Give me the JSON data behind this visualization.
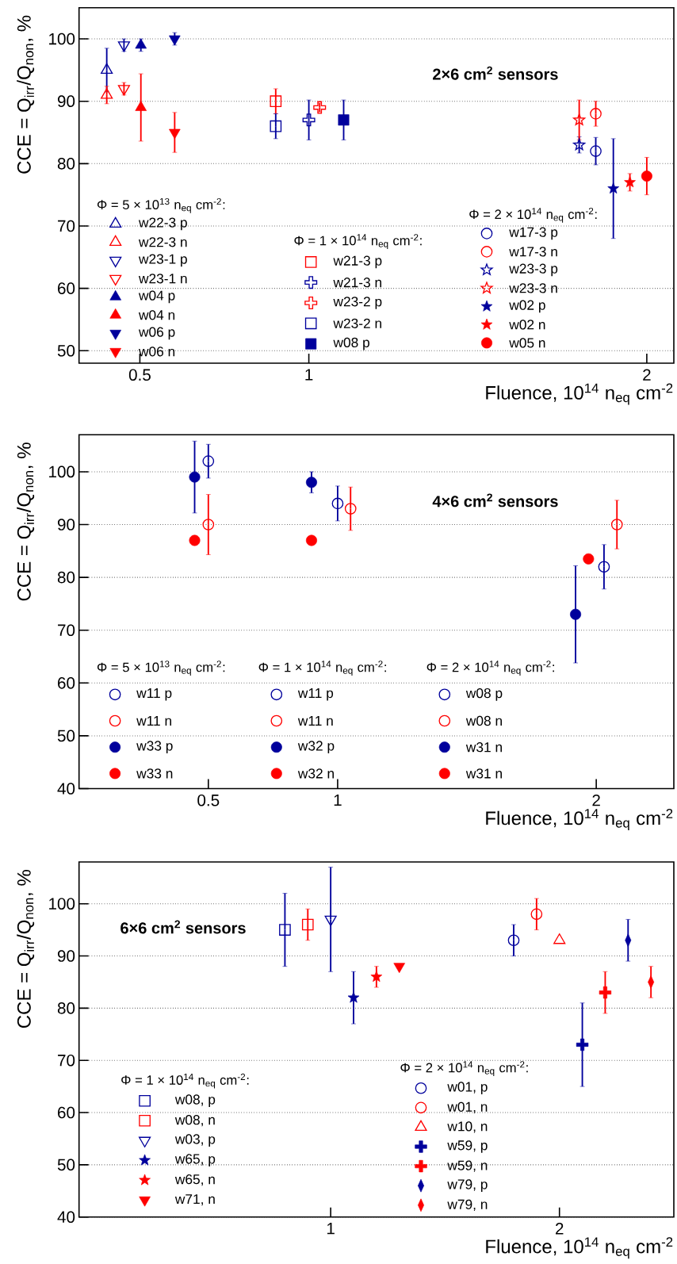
{
  "chart_data": [
    {
      "type": "scatter",
      "title": "2×6 cm$^{2}$ sensors",
      "xlabel": "Fluence, 10$^{14}$ n$_{eq}$ cm$^{-2}$",
      "ylabel": "CCE = Q$_{irr}$/Q$_{non}$, %",
      "xlim": [
        0.32,
        2.08
      ],
      "xticks": [
        0.5,
        1,
        2
      ],
      "ylim": [
        48,
        105
      ],
      "yticks": [
        50,
        60,
        70,
        80,
        90,
        100
      ],
      "grid": "y",
      "legend": "bottom",
      "annotations": [
        "Φ = 5 × 10$^{13}$ n$_{eq}$ cm$^{-2}$:",
        "Φ = 1 × 10$^{14}$ n$_{eq}$ cm$^{-2}$:",
        "Φ = 2 × 10$^{14}$ n$_{eq}$ cm$^{-2}$:"
      ],
      "series": [
        {
          "name": "w22-3 p",
          "color": "#00009c",
          "marker": "triangle-open",
          "x": [
            0.402
          ],
          "values": [
            95
          ],
          "errors": [
            3.5
          ]
        },
        {
          "name": "w22-3 n",
          "color": "#ff0000",
          "marker": "triangle-open",
          "x": [
            0.402
          ],
          "values": [
            91
          ],
          "errors": [
            1.4
          ]
        },
        {
          "name": "w23-1 p",
          "color": "#00009c",
          "marker": "triangle-down-open",
          "x": [
            0.453
          ],
          "values": [
            99
          ],
          "errors": [
            1
          ]
        },
        {
          "name": "w23-1 n",
          "color": "#ff0000",
          "marker": "triangle-down-open",
          "x": [
            0.453
          ],
          "values": [
            92
          ],
          "errors": [
            1
          ]
        },
        {
          "name": "w04 p",
          "color": "#00009c",
          "marker": "triangle",
          "x": [
            0.503
          ],
          "values": [
            99
          ],
          "errors": [
            1
          ]
        },
        {
          "name": "w04 n",
          "color": "#ff0000",
          "marker": "triangle",
          "x": [
            0.503
          ],
          "values": [
            89
          ],
          "errors": [
            5.4
          ]
        },
        {
          "name": "w06 p",
          "color": "#00009c",
          "marker": "triangle-down",
          "x": [
            0.603
          ],
          "values": [
            100
          ],
          "errors": [
            1
          ]
        },
        {
          "name": "w06 n",
          "color": "#ff0000",
          "marker": "triangle-down",
          "x": [
            0.603
          ],
          "values": [
            85
          ],
          "errors": [
            3.2
          ]
        },
        {
          "name": "w21-3 p",
          "color": "#ff0000",
          "marker": "square-open",
          "x": [
            0.902
          ],
          "values": [
            90
          ],
          "errors": [
            2
          ]
        },
        {
          "name": "w21-3 n",
          "color": "#00009c",
          "marker": "cross-open",
          "x": [
            1.0
          ],
          "values": [
            87
          ],
          "errors": [
            3.2
          ]
        },
        {
          "name": "w23-2 p",
          "color": "#ff0000",
          "marker": "cross-open",
          "x": [
            1.032
          ],
          "values": [
            89
          ],
          "errors": [
            0.7
          ]
        },
        {
          "name": "w23-2 n",
          "color": "#00009c",
          "marker": "square-open",
          "x": [
            0.902
          ],
          "values": [
            86
          ],
          "errors": [
            2
          ]
        },
        {
          "name": "w08 p",
          "color": "#00009c",
          "marker": "square",
          "x": [
            1.103
          ],
          "values": [
            87
          ],
          "errors": [
            3.2
          ]
        },
        {
          "name": "w17-3 p",
          "color": "#00009c",
          "marker": "circle-open",
          "x": [
            1.849
          ],
          "values": [
            82
          ],
          "errors": [
            2.2
          ]
        },
        {
          "name": "w17-3 n",
          "color": "#ff0000",
          "marker": "circle-open",
          "x": [
            1.849
          ],
          "values": [
            88
          ],
          "errors": [
            2
          ]
        },
        {
          "name": "w23-3 p",
          "color": "#00009c",
          "marker": "star-open",
          "x": [
            1.8
          ],
          "values": [
            83
          ],
          "errors": [
            1.3
          ]
        },
        {
          "name": "w23-3 n",
          "color": "#ff0000",
          "marker": "star-open",
          "x": [
            1.8
          ],
          "values": [
            87
          ],
          "errors": [
            3.2
          ]
        },
        {
          "name": "w02 p",
          "color": "#00009c",
          "marker": "star",
          "x": [
            1.901
          ],
          "values": [
            76
          ],
          "errors": [
            8
          ]
        },
        {
          "name": "w02 n",
          "color": "#ff0000",
          "marker": "star",
          "x": [
            1.95
          ],
          "values": [
            77
          ],
          "errors": [
            1.4
          ]
        },
        {
          "name": "w05 n",
          "color": "#ff0000",
          "marker": "circle",
          "x": [
            2.0
          ],
          "values": [
            78
          ],
          "errors": [
            3
          ]
        }
      ]
    },
    {
      "type": "scatter",
      "title": "4×6 cm$^{2}$ sensors",
      "xlabel": "Fluence, 10$^{14}$ n$_{eq}$ cm$^{-2}$",
      "ylabel": "CCE = Q$_{irr}$/Q$_{non}$, %",
      "xlim": [
        0,
        2.3
      ],
      "xticks": [
        0.5,
        1,
        2
      ],
      "ylim": [
        40,
        107
      ],
      "yticks": [
        40,
        50,
        60,
        70,
        80,
        90,
        100
      ],
      "grid": "y",
      "legend": "bottom",
      "annotations": [
        "Φ = 5 × 10$^{13}$ n$_{eq}$ cm$^{-2}$:",
        "Φ = 1 × 10$^{14}$ n$_{eq}$ cm$^{-2}$:",
        "Φ = 2 × 10$^{14}$ n$_{eq}$ cm$^{-2}$:"
      ],
      "series": [
        {
          "name": "w11 p",
          "color": "#00009c",
          "marker": "circle-open",
          "x": [
            0.5
          ],
          "values": [
            102
          ],
          "errors": [
            3.2
          ]
        },
        {
          "name": "w11 n",
          "color": "#ff0000",
          "marker": "circle-open",
          "x": [
            0.5
          ],
          "values": [
            90
          ],
          "errors": [
            5.7
          ]
        },
        {
          "name": "w33 p",
          "color": "#00009c",
          "marker": "circle",
          "x": [
            0.447
          ],
          "values": [
            99
          ],
          "errors": [
            6.8
          ]
        },
        {
          "name": "w33 n",
          "color": "#ff0000",
          "marker": "circle",
          "x": [
            0.447
          ],
          "values": [
            87
          ],
          "errors": [
            null
          ]
        },
        {
          "name": "w11 p",
          "color": "#00009c",
          "marker": "circle-open",
          "x": [
            1.0
          ],
          "values": [
            94
          ],
          "errors": [
            3.3
          ]
        },
        {
          "name": "w11 n",
          "color": "#ff0000",
          "marker": "circle-open",
          "x": [
            1.05
          ],
          "values": [
            93
          ],
          "errors": [
            4.1
          ]
        },
        {
          "name": "w32 p",
          "color": "#00009c",
          "marker": "circle",
          "x": [
            0.899
          ],
          "values": [
            98
          ],
          "errors": [
            2
          ]
        },
        {
          "name": "w32 n",
          "color": "#ff0000",
          "marker": "circle",
          "x": [
            0.899
          ],
          "values": [
            87
          ],
          "errors": [
            null
          ]
        },
        {
          "name": "w08 p",
          "color": "#00009c",
          "marker": "circle-open",
          "x": [
            2.03
          ],
          "values": [
            82
          ],
          "errors": [
            4.2
          ]
        },
        {
          "name": "w08 n",
          "color": "#ff0000",
          "marker": "circle-open",
          "x": [
            2.08
          ],
          "values": [
            90
          ],
          "errors": [
            4.6
          ]
        },
        {
          "name": "w31 n",
          "color": "#00009c",
          "marker": "circle",
          "x": [
            1.92
          ],
          "values": [
            73
          ],
          "errors": [
            9.2
          ]
        },
        {
          "name": "w31 n",
          "color": "#ff0000",
          "marker": "circle",
          "x": [
            1.97
          ],
          "values": [
            83.5
          ],
          "errors": [
            null
          ]
        }
      ]
    },
    {
      "type": "scatter",
      "title": "6×6 cm$^{2}$ sensors",
      "xlabel": "Fluence, 10$^{14}$ n$_{eq}$ cm$^{-2}$",
      "ylabel": "CCE = Q$_{irr}$/Q$_{non}$, %",
      "xlim": [
        -0.1,
        2.5
      ],
      "xticks": [
        1,
        2
      ],
      "ylim": [
        40,
        108
      ],
      "yticks": [
        40,
        50,
        60,
        70,
        80,
        90,
        100
      ],
      "grid": "y",
      "legend": "bottom",
      "annotations": [
        "Φ = 1 × 10$^{14}$ n$_{eq}$ cm$^{-2}$:",
        "Φ = 2 × 10$^{14}$ n$_{eq}$ cm$^{-2}$:"
      ],
      "series": [
        {
          "name": "w08, p",
          "color": "#00009c",
          "marker": "square-open",
          "x": [
            0.8
          ],
          "values": [
            95
          ],
          "errors": [
            7
          ]
        },
        {
          "name": "w08, n",
          "color": "#ff0000",
          "marker": "square-open",
          "x": [
            0.9
          ],
          "values": [
            96
          ],
          "errors": [
            3
          ]
        },
        {
          "name": "w03, p",
          "color": "#00009c",
          "marker": "triangle-down-open",
          "x": [
            1.0
          ],
          "values": [
            97
          ],
          "errors": [
            10
          ]
        },
        {
          "name": "w65, p",
          "color": "#00009c",
          "marker": "star",
          "x": [
            1.1
          ],
          "values": [
            82
          ],
          "errors": [
            5
          ]
        },
        {
          "name": "w65, n",
          "color": "#ff0000",
          "marker": "star",
          "x": [
            1.2
          ],
          "values": [
            86
          ],
          "errors": [
            2
          ]
        },
        {
          "name": "w71, n",
          "color": "#ff0000",
          "marker": "triangle-down",
          "x": [
            1.3
          ],
          "values": [
            88
          ],
          "errors": [
            null
          ]
        },
        {
          "name": "w01, p",
          "color": "#00009c",
          "marker": "circle-open",
          "x": [
            1.8
          ],
          "values": [
            93
          ],
          "errors": [
            3
          ]
        },
        {
          "name": "w01, n",
          "color": "#ff0000",
          "marker": "circle-open",
          "x": [
            1.9
          ],
          "values": [
            98
          ],
          "errors": [
            3
          ]
        },
        {
          "name": "w10, n",
          "color": "#ff0000",
          "marker": "triangle-open",
          "x": [
            2.0
          ],
          "values": [
            93
          ],
          "errors": [
            null
          ]
        },
        {
          "name": "w59, p",
          "color": "#00009c",
          "marker": "cross",
          "x": [
            2.1
          ],
          "values": [
            73
          ],
          "errors": [
            8
          ]
        },
        {
          "name": "w59, n",
          "color": "#ff0000",
          "marker": "cross",
          "x": [
            2.2
          ],
          "values": [
            83
          ],
          "errors": [
            4
          ]
        },
        {
          "name": "w79, p",
          "color": "#00009c",
          "marker": "diamond",
          "x": [
            2.3
          ],
          "values": [
            93
          ],
          "errors": [
            4
          ]
        },
        {
          "name": "w79, n",
          "color": "#ff0000",
          "marker": "diamond",
          "x": [
            2.4
          ],
          "values": [
            85
          ],
          "errors": [
            3
          ]
        }
      ]
    }
  ]
}
